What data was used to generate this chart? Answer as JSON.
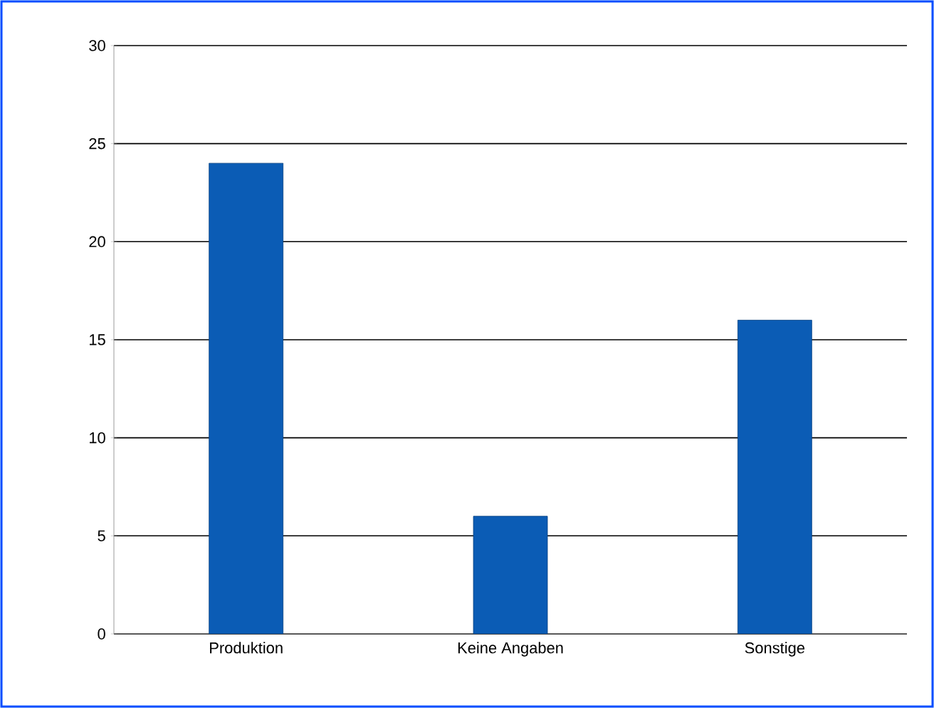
{
  "chart_data": {
    "type": "bar",
    "categories": [
      "Produktion",
      "Keine Angaben",
      "Sonstige"
    ],
    "values": [
      24,
      6,
      16
    ],
    "color": "#0b5cb5",
    "ylim": [
      0,
      30
    ],
    "yticks": [
      0,
      5,
      10,
      15,
      20,
      25,
      30
    ],
    "grid": "y"
  }
}
